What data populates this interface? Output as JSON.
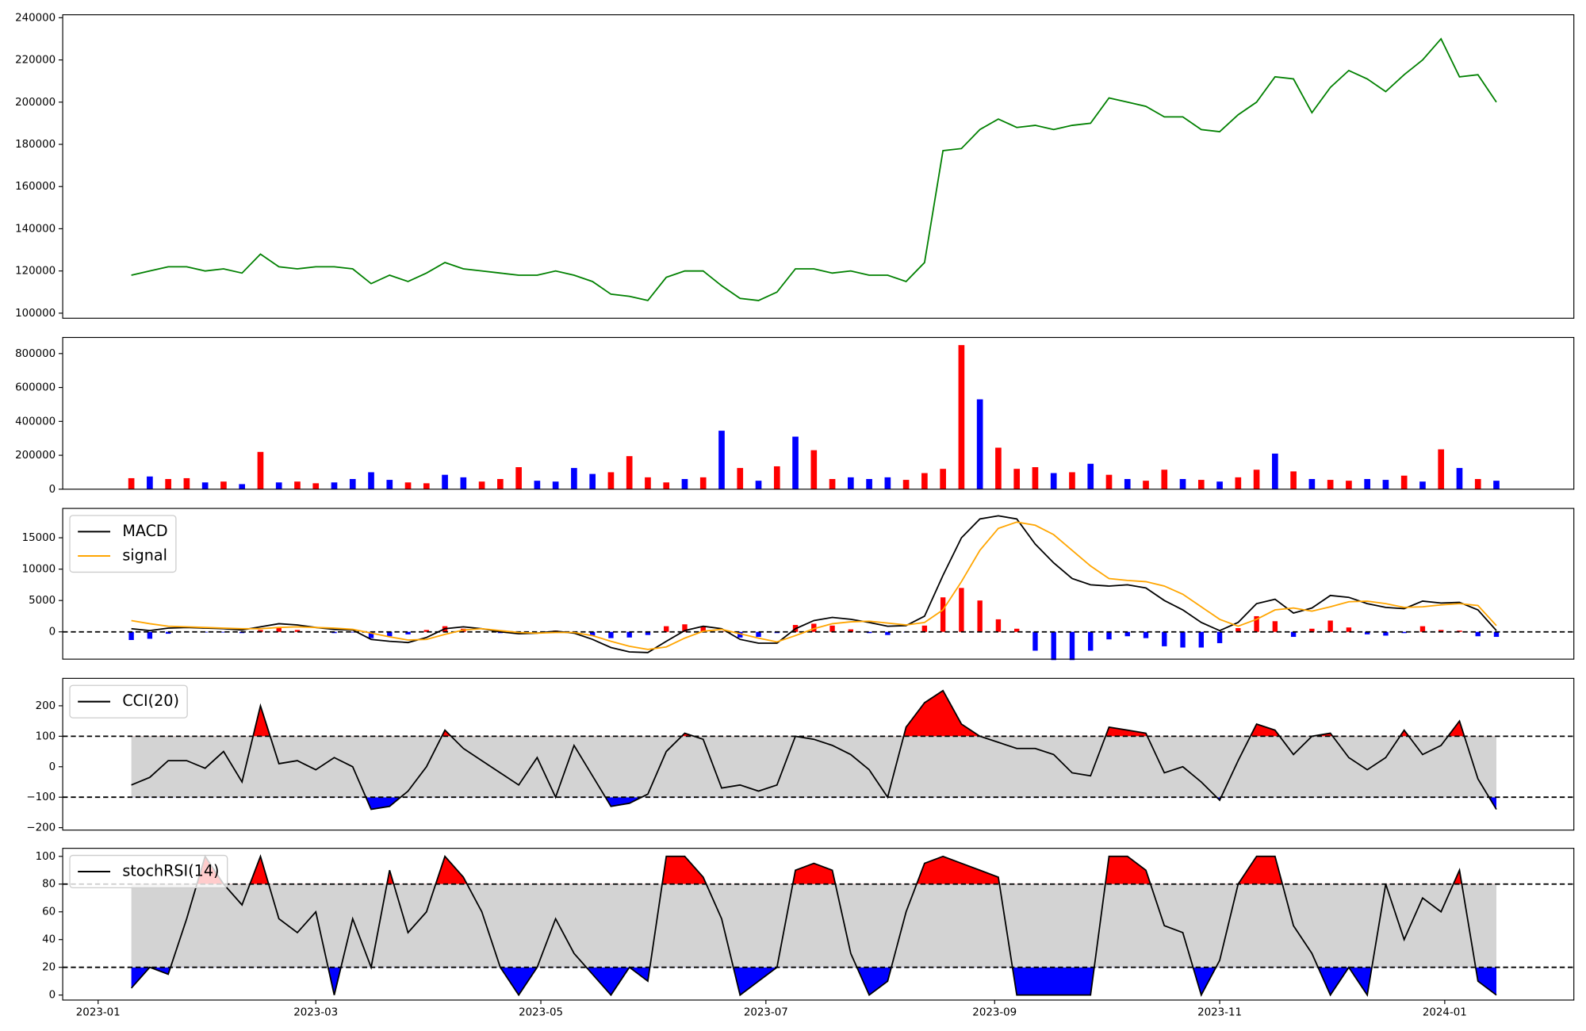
{
  "chart_data": [
    {
      "type": "line",
      "color": "green",
      "xlim": [
        -9.6,
        400
      ],
      "ylim": [
        97600,
        241400
      ],
      "yticks": [
        100000,
        120000,
        140000,
        160000,
        180000,
        200000,
        220000,
        240000
      ],
      "x": [
        9,
        14,
        19,
        24,
        29,
        34,
        39,
        44,
        49,
        54,
        59,
        64,
        69,
        74,
        79,
        84,
        89,
        94,
        99,
        104,
        109,
        114,
        119,
        124,
        129,
        134,
        139,
        144,
        149,
        154,
        159,
        164,
        169,
        174,
        179,
        184,
        189,
        194,
        199,
        204,
        209,
        214,
        219,
        224,
        229,
        234,
        239,
        244,
        249,
        254,
        259,
        264,
        269,
        274,
        279,
        284,
        289,
        294,
        299,
        304,
        309,
        314,
        319,
        324,
        329,
        334,
        339,
        344,
        349,
        354,
        359,
        364,
        369,
        374,
        379
      ],
      "values": [
        118000,
        120000,
        122000,
        122000,
        120000,
        121000,
        119000,
        128000,
        122000,
        121000,
        122000,
        122000,
        121000,
        114000,
        118000,
        115000,
        119000,
        124000,
        121000,
        120000,
        119000,
        118000,
        118000,
        120000,
        118000,
        115000,
        109000,
        108000,
        106000,
        117000,
        120000,
        120000,
        113000,
        107000,
        106000,
        110000,
        121000,
        121000,
        119000,
        120000,
        118000,
        118000,
        115000,
        124000,
        177000,
        178000,
        187000,
        192000,
        188000,
        189000,
        187000,
        189000,
        190000,
        202000,
        200000,
        198000,
        193000,
        193000,
        187000,
        186000,
        194000,
        200000,
        212000,
        211000,
        195000,
        207000,
        215000,
        211000,
        205000,
        213000,
        220000,
        230000,
        212000,
        213000,
        200000
      ]
    },
    {
      "type": "bar",
      "xlim": [
        -9.6,
        400
      ],
      "ylim": [
        0,
        895000
      ],
      "yticks": [
        0,
        200000,
        400000,
        600000,
        800000
      ],
      "x": [
        9,
        14,
        19,
        24,
        29,
        34,
        39,
        44,
        49,
        54,
        59,
        64,
        69,
        74,
        79,
        84,
        89,
        94,
        99,
        104,
        109,
        114,
        119,
        124,
        129,
        134,
        139,
        144,
        149,
        154,
        159,
        164,
        169,
        174,
        179,
        184,
        189,
        194,
        199,
        204,
        209,
        214,
        219,
        224,
        229,
        234,
        239,
        244,
        249,
        254,
        259,
        264,
        269,
        274,
        279,
        284,
        289,
        294,
        299,
        304,
        309,
        314,
        319,
        324,
        329,
        334,
        339,
        344,
        349,
        354,
        359,
        364,
        369,
        374,
        379
      ],
      "values": [
        65000,
        75000,
        60000,
        65000,
        40000,
        45000,
        30000,
        220000,
        40000,
        45000,
        35000,
        40000,
        60000,
        100000,
        55000,
        40000,
        35000,
        85000,
        70000,
        45000,
        60000,
        130000,
        50000,
        45000,
        125000,
        90000,
        100000,
        195000,
        70000,
        40000,
        60000,
        70000,
        345000,
        125000,
        50000,
        135000,
        310000,
        230000,
        60000,
        70000,
        60000,
        70000,
        55000,
        95000,
        120000,
        850000,
        530000,
        245000,
        120000,
        130000,
        95000,
        100000,
        150000,
        85000,
        60000,
        50000,
        115000,
        60000,
        55000,
        45000,
        70000,
        115000,
        210000,
        105000,
        60000,
        55000,
        50000,
        60000,
        55000,
        80000,
        45000,
        235000,
        125000,
        60000,
        50000
      ],
      "colors": [
        "red",
        "blue",
        "red",
        "red",
        "blue",
        "red",
        "blue",
        "red",
        "blue",
        "red",
        "red",
        "blue",
        "blue",
        "blue",
        "blue",
        "red",
        "red",
        "blue",
        "blue",
        "red",
        "red",
        "red",
        "blue",
        "blue",
        "blue",
        "blue",
        "red",
        "red",
        "red",
        "red",
        "blue",
        "red",
        "blue",
        "red",
        "blue",
        "red",
        "blue",
        "red",
        "red",
        "blue",
        "blue",
        "blue",
        "red",
        "red",
        "red",
        "red",
        "blue",
        "red",
        "red",
        "red",
        "blue",
        "red",
        "blue",
        "red",
        "blue",
        "red",
        "red",
        "blue",
        "red",
        "blue",
        "red",
        "red",
        "blue",
        "red",
        "blue",
        "red",
        "red",
        "blue",
        "blue",
        "red",
        "blue",
        "red",
        "blue",
        "red",
        "blue"
      ]
    },
    {
      "type": "macd",
      "xlim": [
        -9.6,
        400
      ],
      "ylim": [
        -4350,
        19680
      ],
      "yticks": [
        0,
        5000,
        10000,
        15000
      ],
      "hlines": [
        0
      ],
      "legend": "upper left",
      "x": [
        9,
        14,
        19,
        24,
        29,
        34,
        39,
        44,
        49,
        54,
        59,
        64,
        69,
        74,
        79,
        84,
        89,
        94,
        99,
        104,
        109,
        114,
        119,
        124,
        129,
        134,
        139,
        144,
        149,
        154,
        159,
        164,
        169,
        174,
        179,
        184,
        189,
        194,
        199,
        204,
        209,
        214,
        219,
        224,
        229,
        234,
        239,
        244,
        249,
        254,
        259,
        264,
        269,
        274,
        279,
        284,
        289,
        294,
        299,
        304,
        309,
        314,
        319,
        324,
        329,
        334,
        339,
        344,
        349,
        354,
        359,
        364,
        369,
        374,
        379
      ],
      "series": [
        {
          "name": "MACD",
          "color": "black",
          "values": [
            500,
            200,
            600,
            700,
            600,
            500,
            300,
            800,
            1300,
            1100,
            700,
            400,
            300,
            -1200,
            -1500,
            -1700,
            -900,
            500,
            800,
            500,
            0,
            -300,
            -200,
            100,
            -200,
            -1200,
            -2500,
            -3200,
            -3300,
            -1500,
            200,
            900,
            500,
            -1200,
            -1800,
            -1800,
            500,
            1800,
            2300,
            2000,
            1500,
            900,
            1000,
            2500,
            9000,
            15000,
            18000,
            18500,
            18000,
            14000,
            11000,
            8500,
            7500,
            7300,
            7500,
            7000,
            5000,
            3500,
            1500,
            200,
            1500,
            4500,
            5200,
            3000,
            3800,
            5800,
            5500,
            4500,
            3900,
            3700,
            4900,
            4600,
            4700,
            3500,
            200
          ]
        },
        {
          "name": "signal",
          "color": "orange",
          "values": [
            1800,
            1300,
            900,
            800,
            700,
            600,
            500,
            500,
            700,
            800,
            700,
            600,
            400,
            -200,
            -800,
            -1300,
            -1200,
            -400,
            300,
            500,
            200,
            -100,
            -200,
            -100,
            -100,
            -600,
            -1500,
            -2300,
            -2800,
            -2400,
            -1000,
            100,
            400,
            -300,
            -1000,
            -1600,
            -600,
            500,
            1300,
            1600,
            1700,
            1400,
            1100,
            1500,
            3500,
            8000,
            13000,
            16500,
            17500,
            17000,
            15500,
            13000,
            10500,
            8500,
            8200,
            8000,
            7300,
            6000,
            4000,
            2000,
            900,
            2000,
            3500,
            3800,
            3300,
            4000,
            4800,
            4900,
            4500,
            3900,
            4000,
            4300,
            4500,
            4200,
            1000
          ]
        }
      ],
      "histogram": {
        "pos_color": "red",
        "neg_color": "blue",
        "values": [
          -1300,
          -1100,
          -300,
          -100,
          -100,
          -100,
          -200,
          300,
          600,
          300,
          0,
          -200,
          -100,
          -1000,
          -700,
          -400,
          300,
          900,
          500,
          0,
          -200,
          -200,
          0,
          200,
          -100,
          -600,
          -1000,
          -900,
          -500,
          900,
          1200,
          800,
          100,
          -900,
          -800,
          -200,
          1100,
          1300,
          1000,
          400,
          -200,
          -500,
          -100,
          1000,
          5500,
          7000,
          5000,
          2000,
          500,
          -3000,
          -4500,
          -4500,
          -3000,
          -1200,
          -700,
          -1000,
          -2300,
          -2500,
          -2500,
          -1800,
          600,
          2500,
          1700,
          -800,
          500,
          1800,
          700,
          -400,
          -600,
          -200,
          900,
          300,
          200,
          -700,
          -800
        ]
      }
    },
    {
      "type": "oscillator",
      "xlim": [
        -9.6,
        400
      ],
      "ylim": [
        -208,
        290
      ],
      "yticks": [
        {
          "value": -200,
          "label": "−200"
        },
        {
          "value": -100,
          "label": "−100"
        },
        0,
        100,
        200
      ],
      "band": [
        -100,
        100
      ],
      "band_color": "lightgray",
      "above_color": "red",
      "below_color": "blue",
      "legend": "upper left",
      "x": [
        9,
        14,
        19,
        24,
        29,
        34,
        39,
        44,
        49,
        54,
        59,
        64,
        69,
        74,
        79,
        84,
        89,
        94,
        99,
        104,
        109,
        114,
        119,
        124,
        129,
        134,
        139,
        144,
        149,
        154,
        159,
        164,
        169,
        174,
        179,
        184,
        189,
        194,
        199,
        204,
        209,
        214,
        219,
        224,
        229,
        234,
        239,
        244,
        249,
        254,
        259,
        264,
        269,
        274,
        279,
        284,
        289,
        294,
        299,
        304,
        309,
        314,
        319,
        324,
        329,
        334,
        339,
        344,
        349,
        354,
        359,
        364,
        369,
        374,
        379
      ],
      "series": [
        {
          "name": "CCI(20)",
          "color": "black",
          "values": [
            -60,
            -35,
            20,
            20,
            -5,
            50,
            -50,
            200,
            10,
            20,
            -10,
            30,
            0,
            -140,
            -130,
            -80,
            0,
            120,
            60,
            20,
            -20,
            -60,
            30,
            -100,
            70,
            -30,
            -130,
            -120,
            -90,
            50,
            110,
            90,
            -70,
            -60,
            -80,
            -60,
            100,
            90,
            70,
            40,
            -10,
            -100,
            130,
            210,
            250,
            140,
            100,
            80,
            60,
            60,
            40,
            -20,
            -30,
            130,
            120,
            110,
            -20,
            0,
            -50,
            -110,
            20,
            140,
            120,
            40,
            100,
            110,
            30,
            -10,
            30,
            120,
            40,
            70,
            150,
            -40,
            -140
          ]
        }
      ]
    },
    {
      "type": "oscillator",
      "xlim": [
        -9.6,
        400
      ],
      "ylim": [
        -3.6,
        105.8
      ],
      "yticks": [
        0,
        20,
        40,
        60,
        80,
        100
      ],
      "xticks": [
        {
          "value": 0,
          "label": "2023-01"
        },
        {
          "value": 59,
          "label": "2023-03"
        },
        {
          "value": 120,
          "label": "2023-05"
        },
        {
          "value": 181,
          "label": "2023-07"
        },
        {
          "value": 243,
          "label": "2023-09"
        },
        {
          "value": 304,
          "label": "2023-11"
        },
        {
          "value": 365,
          "label": "2024-01"
        }
      ],
      "band": [
        20,
        80
      ],
      "band_color": "lightgray",
      "above_color": "red",
      "below_color": "blue",
      "legend": "upper left",
      "x": [
        9,
        14,
        19,
        24,
        29,
        34,
        39,
        44,
        49,
        54,
        59,
        64,
        69,
        74,
        79,
        84,
        89,
        94,
        99,
        104,
        109,
        114,
        119,
        124,
        129,
        134,
        139,
        144,
        149,
        154,
        159,
        164,
        169,
        174,
        179,
        184,
        189,
        194,
        199,
        204,
        209,
        214,
        219,
        224,
        229,
        234,
        239,
        244,
        249,
        254,
        259,
        264,
        269,
        274,
        279,
        284,
        289,
        294,
        299,
        304,
        309,
        314,
        319,
        324,
        329,
        334,
        339,
        344,
        349,
        354,
        359,
        364,
        369,
        374,
        379
      ],
      "series": [
        {
          "name": "stochRSI(14)",
          "color": "black",
          "values": [
            5,
            20,
            15,
            55,
            100,
            80,
            65,
            100,
            55,
            45,
            60,
            0,
            55,
            20,
            90,
            45,
            60,
            100,
            85,
            60,
            20,
            0,
            20,
            55,
            30,
            15,
            0,
            20,
            10,
            100,
            100,
            85,
            55,
            0,
            10,
            20,
            90,
            95,
            90,
            30,
            0,
            10,
            60,
            95,
            100,
            95,
            90,
            85,
            0,
            0,
            0,
            0,
            0,
            100,
            100,
            90,
            50,
            45,
            0,
            25,
            80,
            100,
            100,
            50,
            30,
            0,
            20,
            0,
            80,
            40,
            70,
            60,
            90,
            10,
            0
          ]
        }
      ]
    }
  ]
}
